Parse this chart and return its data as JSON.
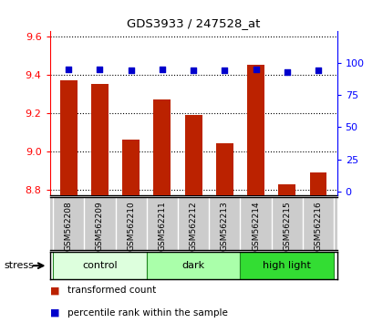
{
  "title": "GDS3933 / 247528_at",
  "samples": [
    "GSM562208",
    "GSM562209",
    "GSM562210",
    "GSM562211",
    "GSM562212",
    "GSM562213",
    "GSM562214",
    "GSM562215",
    "GSM562216"
  ],
  "red_values": [
    9.37,
    9.35,
    9.06,
    9.27,
    9.19,
    9.04,
    9.45,
    8.83,
    8.89
  ],
  "blue_values": [
    95,
    95,
    94,
    95,
    94,
    94,
    95,
    93,
    94
  ],
  "ylim_left": [
    8.77,
    9.63
  ],
  "ylim_right": [
    -3.125,
    125
  ],
  "yticks_left": [
    8.8,
    9.0,
    9.2,
    9.4,
    9.6
  ],
  "yticks_right": [
    0,
    25,
    50,
    75,
    100
  ],
  "groups": [
    {
      "label": "control",
      "start": 0,
      "end": 3,
      "color": "#ddffdd"
    },
    {
      "label": "dark",
      "start": 3,
      "end": 6,
      "color": "#aaffaa"
    },
    {
      "label": "high light",
      "start": 6,
      "end": 9,
      "color": "#33dd33"
    }
  ],
  "bar_color": "#bb2200",
  "dot_color": "#0000cc",
  "bar_width": 0.55,
  "background_color": "#ffffff",
  "stress_label": "stress",
  "legend_red": "transformed count",
  "legend_blue": "percentile rank within the sample"
}
